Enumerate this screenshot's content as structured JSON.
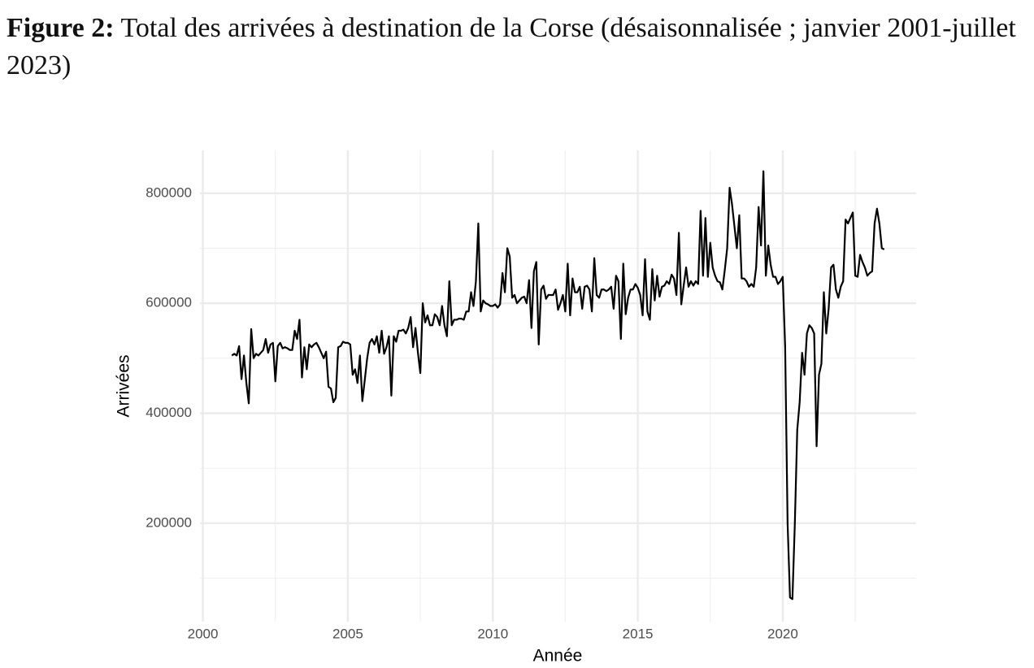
{
  "chart_data": {
    "type": "line",
    "figure_label": "Figure 2:",
    "title": "Total des arrivées à destination de la Corse (désaisonnalisée ; janvier 2001-juillet 2023)",
    "xlabel": "Année",
    "ylabel": "Arrivées",
    "xlim": [
      1999.9,
      2024.6
    ],
    "xticks": [
      2000,
      2005,
      2010,
      2015,
      2020
    ],
    "ylim": [
      21000,
      878000
    ],
    "yticks": [
      200000,
      400000,
      600000,
      800000
    ],
    "grid": true,
    "color": "#000000",
    "x": [
      2001,
      2001.083,
      2001.167,
      2001.25,
      2001.333,
      2001.417,
      2001.5,
      2001.583,
      2001.667,
      2001.75,
      2001.833,
      2001.917,
      2002,
      2002.083,
      2002.167,
      2002.25,
      2002.333,
      2002.417,
      2002.5,
      2002.583,
      2002.667,
      2002.75,
      2002.833,
      2002.917,
      2003,
      2003.083,
      2003.167,
      2003.25,
      2003.333,
      2003.417,
      2003.5,
      2003.583,
      2003.667,
      2003.75,
      2003.833,
      2003.917,
      2004,
      2004.083,
      2004.167,
      2004.25,
      2004.333,
      2004.417,
      2004.5,
      2004.583,
      2004.667,
      2004.75,
      2004.833,
      2004.917,
      2005,
      2005.083,
      2005.167,
      2005.25,
      2005.333,
      2005.417,
      2005.5,
      2005.583,
      2005.667,
      2005.75,
      2005.833,
      2005.917,
      2006,
      2006.083,
      2006.167,
      2006.25,
      2006.333,
      2006.417,
      2006.5,
      2006.583,
      2006.667,
      2006.75,
      2006.833,
      2006.917,
      2007,
      2007.083,
      2007.167,
      2007.25,
      2007.333,
      2007.417,
      2007.5,
      2007.583,
      2007.667,
      2007.75,
      2007.833,
      2007.917,
      2008,
      2008.083,
      2008.167,
      2008.25,
      2008.333,
      2008.417,
      2008.5,
      2008.583,
      2008.667,
      2008.75,
      2008.833,
      2008.917,
      2009,
      2009.083,
      2009.167,
      2009.25,
      2009.333,
      2009.417,
      2009.5,
      2009.583,
      2009.667,
      2009.75,
      2009.833,
      2009.917,
      2010,
      2010.083,
      2010.167,
      2010.25,
      2010.333,
      2010.417,
      2010.5,
      2010.583,
      2010.667,
      2010.75,
      2010.833,
      2010.917,
      2011,
      2011.083,
      2011.167,
      2011.25,
      2011.333,
      2011.417,
      2011.5,
      2011.583,
      2011.667,
      2011.75,
      2011.833,
      2011.917,
      2012,
      2012.083,
      2012.167,
      2012.25,
      2012.333,
      2012.417,
      2012.5,
      2012.583,
      2012.667,
      2012.75,
      2012.833,
      2012.917,
      2013,
      2013.083,
      2013.167,
      2013.25,
      2013.333,
      2013.417,
      2013.5,
      2013.583,
      2013.667,
      2013.75,
      2013.833,
      2013.917,
      2014,
      2014.083,
      2014.167,
      2014.25,
      2014.333,
      2014.417,
      2014.5,
      2014.583,
      2014.667,
      2014.75,
      2014.833,
      2014.917,
      2015,
      2015.083,
      2015.167,
      2015.25,
      2015.333,
      2015.417,
      2015.5,
      2015.583,
      2015.667,
      2015.75,
      2015.833,
      2015.917,
      2016,
      2016.083,
      2016.167,
      2016.25,
      2016.333,
      2016.417,
      2016.5,
      2016.583,
      2016.667,
      2016.75,
      2016.833,
      2016.917,
      2017,
      2017.083,
      2017.167,
      2017.25,
      2017.333,
      2017.417,
      2017.5,
      2017.583,
      2017.667,
      2017.75,
      2017.833,
      2017.917,
      2018,
      2018.083,
      2018.167,
      2018.25,
      2018.333,
      2018.417,
      2018.5,
      2018.583,
      2018.667,
      2018.75,
      2018.833,
      2018.917,
      2019,
      2019.083,
      2019.167,
      2019.25,
      2019.333,
      2019.417,
      2019.5,
      2019.583,
      2019.667,
      2019.75,
      2019.833,
      2019.917,
      2020,
      2020.083,
      2020.167,
      2020.25,
      2020.333,
      2020.417,
      2020.5,
      2020.583,
      2020.667,
      2020.75,
      2020.833,
      2020.917,
      2021,
      2021.083,
      2021.167,
      2021.25,
      2021.333,
      2021.417,
      2021.5,
      2021.583,
      2021.667,
      2021.75,
      2021.833,
      2021.917,
      2022,
      2022.083,
      2022.167,
      2022.25,
      2022.333,
      2022.417,
      2022.5,
      2022.583,
      2022.667,
      2022.75,
      2022.833,
      2022.917,
      2023,
      2023.083,
      2023.167,
      2023.25,
      2023.333,
      2023.417,
      2023.5
    ],
    "values": [
      505000,
      508000,
      505000,
      522000,
      462000,
      505000,
      455000,
      418000,
      553000,
      500000,
      508000,
      505000,
      510000,
      515000,
      535000,
      510000,
      525000,
      528000,
      458000,
      522000,
      528000,
      518000,
      520000,
      518000,
      515000,
      515000,
      550000,
      535000,
      570000,
      465000,
      520000,
      480000,
      525000,
      520000,
      525000,
      528000,
      520000,
      510000,
      500000,
      512000,
      448000,
      445000,
      420000,
      428000,
      520000,
      522000,
      530000,
      528000,
      528000,
      525000,
      470000,
      480000,
      455000,
      505000,
      422000,
      460000,
      500000,
      528000,
      535000,
      525000,
      540000,
      510000,
      550000,
      508000,
      520000,
      540000,
      432000,
      540000,
      530000,
      550000,
      550000,
      552000,
      545000,
      555000,
      575000,
      520000,
      555000,
      510000,
      473000,
      600000,
      565000,
      578000,
      560000,
      560000,
      580000,
      575000,
      560000,
      595000,
      560000,
      540000,
      640000,
      560000,
      570000,
      570000,
      572000,
      572000,
      570000,
      585000,
      585000,
      620000,
      595000,
      640000,
      745000,
      585000,
      605000,
      600000,
      598000,
      595000,
      595000,
      598000,
      592000,
      598000,
      655000,
      620000,
      700000,
      685000,
      610000,
      615000,
      600000,
      605000,
      610000,
      612000,
      600000,
      642000,
      555000,
      658000,
      675000,
      525000,
      625000,
      632000,
      608000,
      615000,
      615000,
      615000,
      625000,
      588000,
      600000,
      615000,
      585000,
      672000,
      578000,
      645000,
      620000,
      620000,
      630000,
      590000,
      630000,
      632000,
      625000,
      585000,
      682000,
      615000,
      610000,
      625000,
      625000,
      622000,
      625000,
      630000,
      590000,
      650000,
      640000,
      535000,
      672000,
      580000,
      610000,
      625000,
      625000,
      635000,
      628000,
      615000,
      578000,
      680000,
      585000,
      570000,
      662000,
      605000,
      650000,
      612000,
      630000,
      632000,
      640000,
      635000,
      652000,
      645000,
      615000,
      728000,
      598000,
      632000,
      665000,
      630000,
      640000,
      632000,
      640000,
      635000,
      768000,
      650000,
      755000,
      648000,
      710000,
      665000,
      650000,
      640000,
      638000,
      625000,
      660000,
      700000,
      810000,
      780000,
      740000,
      700000,
      760000,
      645000,
      645000,
      640000,
      630000,
      635000,
      630000,
      665000,
      775000,
      705000,
      840000,
      650000,
      705000,
      670000,
      648000,
      648000,
      635000,
      640000,
      648000,
      520000,
      200000,
      65000,
      62000,
      200000,
      370000,
      420000,
      510000,
      470000,
      545000,
      560000,
      555000,
      545000,
      340000,
      470000,
      490000,
      620000,
      545000,
      590000,
      665000,
      670000,
      625000,
      610000,
      630000,
      640000,
      752000,
      745000,
      755000,
      765000,
      650000,
      648000,
      688000,
      675000,
      665000,
      650000,
      655000,
      658000,
      745000,
      772000,
      745000,
      700000,
      698000
    ]
  }
}
